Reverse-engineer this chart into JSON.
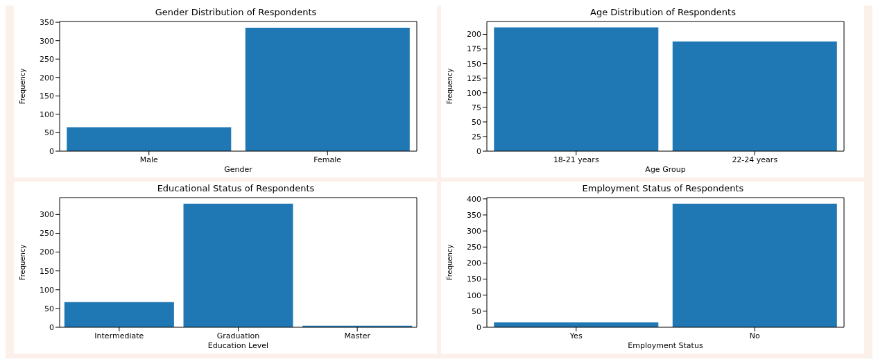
{
  "chart_data": [
    {
      "type": "bar",
      "title": "Gender Distribution of Respondents",
      "xlabel": "Gender",
      "ylabel": "Frequency",
      "categories": [
        "Male",
        "Female"
      ],
      "values": [
        65,
        335
      ],
      "color": "#1f77b4",
      "ylim": [
        0,
        352
      ],
      "yticks": [
        0,
        50,
        100,
        150,
        200,
        250,
        300,
        350
      ],
      "grid": false,
      "legend": false
    },
    {
      "type": "bar",
      "title": "Age Distribution of Respondents",
      "xlabel": "Age Group",
      "ylabel": "Frequency",
      "categories": [
        "18-21 years",
        "22-24 years"
      ],
      "values": [
        212,
        188
      ],
      "color": "#1f77b4",
      "ylim": [
        0,
        222
      ],
      "yticks": [
        0,
        25,
        50,
        75,
        100,
        125,
        150,
        175,
        200
      ],
      "grid": false,
      "legend": false
    },
    {
      "type": "bar",
      "title": "Educational Status of Respondents",
      "xlabel": "Education Level",
      "ylabel": "Frequency",
      "categories": [
        "Intermediate",
        "Graduation",
        "Master"
      ],
      "values": [
        67,
        329,
        4
      ],
      "color": "#1f77b4",
      "ylim": [
        0,
        345
      ],
      "yticks": [
        0,
        50,
        100,
        150,
        200,
        250,
        300
      ],
      "grid": false,
      "legend": false
    },
    {
      "type": "bar",
      "title": "Employment Status of Respondents",
      "xlabel": "Employment Status",
      "ylabel": "Frequency",
      "categories": [
        "Yes",
        "No"
      ],
      "values": [
        15,
        385
      ],
      "color": "#1f77b4",
      "ylim": [
        0,
        404
      ],
      "yticks": [
        0,
        50,
        100,
        150,
        200,
        250,
        300,
        350,
        400
      ],
      "grid": false,
      "legend": false
    }
  ]
}
